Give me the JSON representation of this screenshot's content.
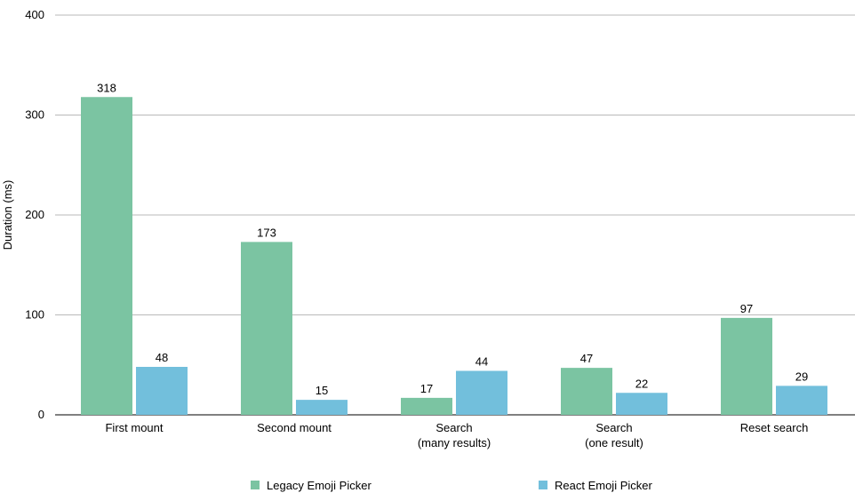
{
  "chart_data": {
    "type": "bar",
    "ylabel": "Duration (ms)",
    "xlabel": "",
    "ylim": [
      0,
      400
    ],
    "yticks": [
      0,
      100,
      200,
      300,
      400
    ],
    "grid": true,
    "legend_position": "bottom",
    "categories": [
      [
        "First mount"
      ],
      [
        "Second mount"
      ],
      [
        "Search",
        "(many results)"
      ],
      [
        "Search",
        "(one result)"
      ],
      [
        "Reset search"
      ]
    ],
    "series": [
      {
        "name": "Legacy Emoji Picker",
        "color": "#7bc4a2",
        "values": [
          318,
          173,
          17,
          47,
          97
        ]
      },
      {
        "name": "React Emoji Picker",
        "color": "#72bfdc",
        "values": [
          48,
          15,
          44,
          22,
          29
        ]
      }
    ]
  }
}
